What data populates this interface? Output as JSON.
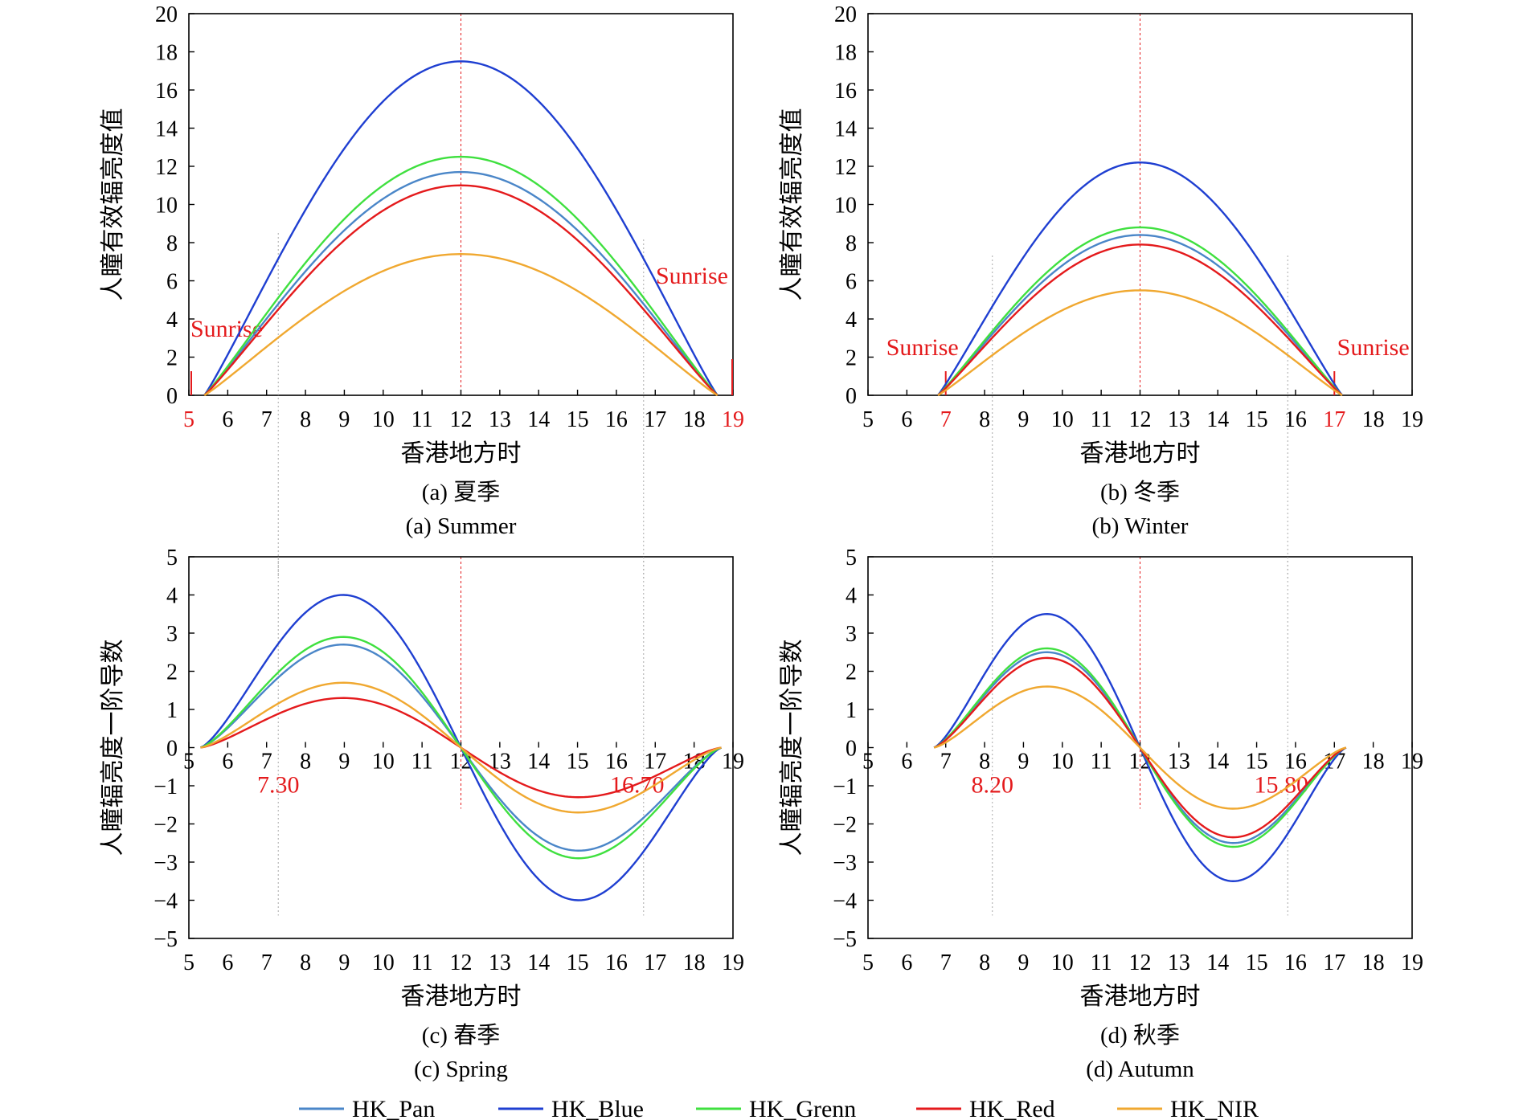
{
  "legend": [
    {
      "name": "HK_Pan",
      "color": "#4a86c8"
    },
    {
      "name": "HK_Blue",
      "color": "#1f3fd1"
    },
    {
      "name": "HK_Grenn",
      "color": "#3fe03f"
    },
    {
      "name": "HK_Red",
      "color": "#e41a1c"
    },
    {
      "name": "HK_NIR",
      "color": "#f0a830"
    }
  ],
  "chart_data": [
    {
      "type": "line",
      "caption_cn": "(a) 夏季",
      "caption_en": "(a) Summer",
      "xlabel": "香港地方时",
      "ylabel": "人瞳有效辐亮度值",
      "xlim": [
        5,
        19
      ],
      "ylim": [
        0,
        20
      ],
      "xticks": [
        5,
        6,
        7,
        8,
        9,
        10,
        11,
        12,
        13,
        14,
        15,
        16,
        17,
        18,
        19
      ],
      "yticks": [
        0,
        2,
        4,
        6,
        8,
        10,
        12,
        14,
        16,
        18,
        20
      ],
      "red_xticks": [
        5,
        19
      ],
      "sunrise_labels": [
        "Sunrise",
        "Sunrise"
      ],
      "day_range": [
        5.4,
        18.6
      ],
      "series": [
        {
          "name": "HK_Pan",
          "peak": 11.7
        },
        {
          "name": "HK_Blue",
          "peak": 17.5
        },
        {
          "name": "HK_Grenn",
          "peak": 12.5
        },
        {
          "name": "HK_Red",
          "peak": 11.0
        },
        {
          "name": "HK_NIR",
          "peak": 7.4
        }
      ]
    },
    {
      "type": "line",
      "caption_cn": "(b) 冬季",
      "caption_en": "(b) Winter",
      "xlabel": "香港地方时",
      "ylabel": "人瞳有效辐亮度值",
      "xlim": [
        5,
        19
      ],
      "ylim": [
        0,
        20
      ],
      "xticks": [
        5,
        6,
        7,
        8,
        9,
        10,
        11,
        12,
        13,
        14,
        15,
        16,
        17,
        18,
        19
      ],
      "yticks": [
        0,
        2,
        4,
        6,
        8,
        10,
        12,
        14,
        16,
        18,
        20
      ],
      "red_xticks": [
        7,
        17
      ],
      "sunrise_labels": [
        "Sunrise",
        "Sunrise"
      ],
      "day_range": [
        6.8,
        17.2
      ],
      "series": [
        {
          "name": "HK_Pan",
          "peak": 8.4
        },
        {
          "name": "HK_Blue",
          "peak": 12.2
        },
        {
          "name": "HK_Grenn",
          "peak": 8.8
        },
        {
          "name": "HK_Red",
          "peak": 7.9
        },
        {
          "name": "HK_NIR",
          "peak": 5.5
        }
      ]
    },
    {
      "type": "line",
      "caption_cn": "(c) 春季",
      "caption_en": "(c) Spring",
      "xlabel": "香港地方时",
      "ylabel": "人瞳辐亮度一阶导数",
      "xlim": [
        5,
        19
      ],
      "ylim": [
        -5,
        5
      ],
      "xticks": [
        5,
        6,
        7,
        8,
        9,
        10,
        11,
        12,
        13,
        14,
        15,
        16,
        17,
        18,
        19
      ],
      "yticks": [
        -5,
        -4,
        -3,
        -2,
        -1,
        0,
        1,
        2,
        3,
        4,
        5
      ],
      "annotations": [
        "7.30",
        "16.70"
      ],
      "extreme_x": [
        7.3,
        16.7
      ],
      "day_range": [
        5.3,
        18.7
      ],
      "series": [
        {
          "name": "HK_Pan",
          "peak": 2.7
        },
        {
          "name": "HK_Blue",
          "peak": 4.0
        },
        {
          "name": "HK_Grenn",
          "peak": 2.9
        },
        {
          "name": "HK_Red",
          "peak": 1.3
        },
        {
          "name": "HK_NIR",
          "peak": 1.7
        }
      ]
    },
    {
      "type": "line",
      "caption_cn": "(d) 秋季",
      "caption_en": "(d) Autumn",
      "xlabel": "香港地方时",
      "ylabel": "人瞳辐亮度一阶导数",
      "xlim": [
        5,
        19
      ],
      "ylim": [
        -5,
        5
      ],
      "xticks": [
        5,
        6,
        7,
        8,
        9,
        10,
        11,
        12,
        13,
        14,
        15,
        16,
        17,
        18,
        19
      ],
      "yticks": [
        -5,
        -4,
        -3,
        -2,
        -1,
        0,
        1,
        2,
        3,
        4,
        5
      ],
      "annotations": [
        "8.20",
        "15.80"
      ],
      "extreme_x": [
        8.2,
        15.8
      ],
      "day_range": [
        6.7,
        17.3
      ],
      "series": [
        {
          "name": "HK_Pan",
          "peak": 2.5
        },
        {
          "name": "HK_Blue",
          "peak": 3.5
        },
        {
          "name": "HK_Grenn",
          "peak": 2.6
        },
        {
          "name": "HK_Red",
          "peak": 2.35
        },
        {
          "name": "HK_NIR",
          "peak": 1.6
        }
      ]
    }
  ]
}
